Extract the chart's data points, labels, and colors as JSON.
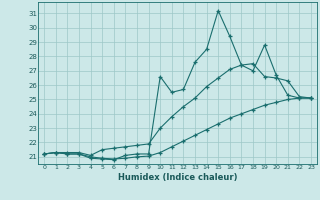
{
  "xlabel": "Humidex (Indice chaleur)",
  "bg_color": "#cce8e8",
  "grid_color": "#9dc8c8",
  "line_color": "#1a6e6e",
  "x_ticks": [
    0,
    1,
    2,
    3,
    4,
    5,
    6,
    7,
    8,
    9,
    10,
    11,
    12,
    13,
    14,
    15,
    16,
    17,
    18,
    19,
    20,
    21,
    22,
    23
  ],
  "y_ticks": [
    21,
    22,
    23,
    24,
    25,
    26,
    27,
    28,
    29,
    30,
    31
  ],
  "ylim": [
    20.5,
    31.8
  ],
  "xlim": [
    -0.5,
    23.5
  ],
  "line1": [
    21.2,
    21.3,
    21.2,
    21.2,
    20.9,
    20.85,
    20.8,
    21.1,
    21.2,
    21.2,
    26.6,
    25.5,
    25.7,
    27.6,
    28.5,
    31.2,
    29.4,
    27.4,
    27.0,
    28.8,
    26.7,
    25.3,
    25.1,
    25.1
  ],
  "line2": [
    21.2,
    21.3,
    21.3,
    21.3,
    21.1,
    21.5,
    21.6,
    21.7,
    21.8,
    21.9,
    23.0,
    23.8,
    24.5,
    25.1,
    25.9,
    26.5,
    27.1,
    27.4,
    27.5,
    26.6,
    26.5,
    26.3,
    25.2,
    25.1
  ],
  "line3": [
    21.2,
    21.3,
    21.2,
    21.2,
    21.0,
    20.9,
    20.85,
    20.9,
    21.0,
    21.05,
    21.3,
    21.7,
    22.1,
    22.5,
    22.9,
    23.3,
    23.7,
    24.0,
    24.3,
    24.6,
    24.8,
    25.0,
    25.1,
    25.1
  ]
}
